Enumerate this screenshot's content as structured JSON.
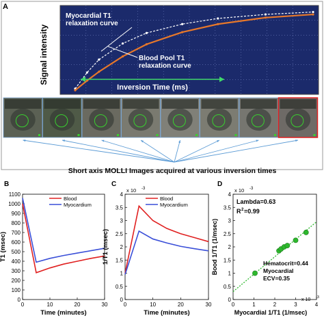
{
  "figure": {
    "panel_letters": [
      "A",
      "B",
      "C",
      "D"
    ],
    "caption": "Short axis MOLLI Images acquired at various inversion times",
    "colors": {
      "plot_bg": "#1b2a6b",
      "plot_border": "#444444",
      "frame_border": "#7aa7d6",
      "red": "#e02020",
      "blue": "#3a4fd8",
      "orange": "#e8782a",
      "green": "#2db82d",
      "connector": "#5b9bd5"
    }
  },
  "chart_data": [
    {
      "panel": "A",
      "type": "line",
      "ylabel": "Signal intensity",
      "annotations": {
        "myocardial": "Myocardial T1 relaxation curve",
        "blood": "Blood Pool T1 relaxation curve",
        "inversion_time": "Inversion Time (ms)"
      },
      "series": [
        {
          "role": "myocardial",
          "color": "#ffffff",
          "x": [
            0,
            0.05,
            0.1,
            0.2,
            0.3,
            0.45,
            0.6,
            0.8,
            1.0
          ],
          "y": [
            0.02,
            0.22,
            0.38,
            0.58,
            0.71,
            0.82,
            0.89,
            0.94,
            0.97
          ]
        },
        {
          "role": "blood",
          "color": "#e8782a",
          "x": [
            0,
            0.05,
            0.1,
            0.2,
            0.3,
            0.45,
            0.6,
            0.8,
            1.0
          ],
          "y": [
            0.0,
            0.12,
            0.23,
            0.42,
            0.57,
            0.72,
            0.82,
            0.9,
            0.94
          ]
        }
      ]
    },
    {
      "panel": "B",
      "type": "line",
      "xlabel": "Time (minutes)",
      "ylabel": "T1 (msec)",
      "xlim": [
        0,
        30
      ],
      "ylim": [
        0,
        1100
      ],
      "xticks": [
        0,
        10,
        20,
        30
      ],
      "yticks": [
        0,
        100,
        200,
        300,
        400,
        500,
        600,
        700,
        800,
        900,
        1000,
        1100
      ],
      "legend": "top-right",
      "series": [
        {
          "name": "Blood",
          "color": "#e02020",
          "x": [
            0,
            5,
            10,
            15,
            20,
            25,
            30
          ],
          "y": [
            1000,
            280,
            330,
            370,
            400,
            430,
            455
          ]
        },
        {
          "name": "Myocardium",
          "color": "#3a4fd8",
          "x": [
            0,
            5,
            10,
            15,
            20,
            25,
            30
          ],
          "y": [
            1060,
            390,
            430,
            460,
            485,
            510,
            535
          ]
        }
      ]
    },
    {
      "panel": "C",
      "type": "line",
      "xlabel": "Time (minutes)",
      "ylabel": "1/T1 (msec)",
      "exponent": "x 10",
      "exponent_power": "-3",
      "xlim": [
        0,
        30
      ],
      "ylim": [
        0,
        4
      ],
      "xticks": [
        0,
        10,
        20,
        30
      ],
      "yticks": [
        0,
        0.5,
        1,
        1.5,
        2,
        2.5,
        3,
        3.5,
        4
      ],
      "legend": "top-right",
      "series": [
        {
          "name": "Blood",
          "color": "#e02020",
          "x": [
            0,
            5,
            10,
            15,
            20,
            25,
            30
          ],
          "y": [
            1.0,
            3.55,
            3.0,
            2.7,
            2.5,
            2.35,
            2.2
          ]
        },
        {
          "name": "Myocardium",
          "color": "#3a4fd8",
          "x": [
            0,
            5,
            10,
            15,
            20,
            25,
            30
          ],
          "y": [
            0.95,
            2.6,
            2.3,
            2.15,
            2.02,
            1.93,
            1.85
          ]
        }
      ]
    },
    {
      "panel": "D",
      "type": "scatter",
      "xlabel": "Myocardial 1/T1 (1/msec)",
      "ylabel": "Bood 1/T1 (1/msec)",
      "exponent": "x 10",
      "exponent_power": "-3",
      "xlim": [
        0,
        4
      ],
      "ylim": [
        0,
        4
      ],
      "xticks": [
        0,
        1,
        2,
        3,
        4
      ],
      "yticks": [
        0,
        0.5,
        1,
        1.5,
        2,
        2.5,
        3,
        3.5,
        4
      ],
      "annotations": {
        "lambda": "Lambda=0.63",
        "r2": "R",
        "r2_value": "=0.99",
        "hematocrit": "Hematocrit=0.44",
        "ecv_line1": "Myocardial",
        "ecv_line2": "ECV=0.35"
      },
      "points": {
        "x": [
          1.05,
          2.2,
          2.3,
          2.45,
          2.6,
          3.0,
          3.5
        ],
        "y": [
          1.0,
          1.85,
          1.92,
          2.0,
          2.05,
          2.25,
          2.55
        ]
      },
      "fit_line": {
        "x": [
          0,
          4
        ],
        "y": [
          0.3,
          2.95
        ]
      }
    }
  ]
}
